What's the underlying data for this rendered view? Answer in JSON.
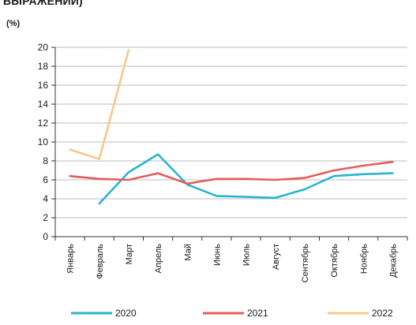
{
  "chart_data": {
    "type": "line",
    "title": "ВЫРАЖЕНИИ)",
    "unit_label": "(%)",
    "categories": [
      "Январь",
      "Февраль",
      "Март",
      "Апрель",
      "Май",
      "Июнь",
      "Июль",
      "Август",
      "Сентябрь",
      "Октябрь",
      "Ноябрь",
      "Декабрь"
    ],
    "ylim": [
      0,
      20
    ],
    "yticks": [
      0,
      2,
      4,
      6,
      8,
      10,
      12,
      14,
      16,
      18,
      20
    ],
    "grid": true,
    "legend_position": "bottom",
    "series": [
      {
        "name": "2020",
        "color": "#2bb3d1",
        "values": [
          null,
          3.5,
          6.8,
          8.7,
          5.5,
          4.3,
          4.2,
          4.1,
          5.0,
          6.4,
          6.6,
          6.7
        ]
      },
      {
        "name": "2021",
        "color": "#e35d5d",
        "values": [
          6.4,
          6.1,
          6.0,
          6.7,
          5.6,
          6.1,
          6.1,
          6.0,
          6.2,
          7.0,
          7.5,
          7.9
        ]
      },
      {
        "name": "2022",
        "color": "#f5c98a",
        "values": [
          9.2,
          8.2,
          19.7,
          null,
          null,
          null,
          null,
          null,
          null,
          null,
          null,
          null
        ]
      }
    ]
  }
}
